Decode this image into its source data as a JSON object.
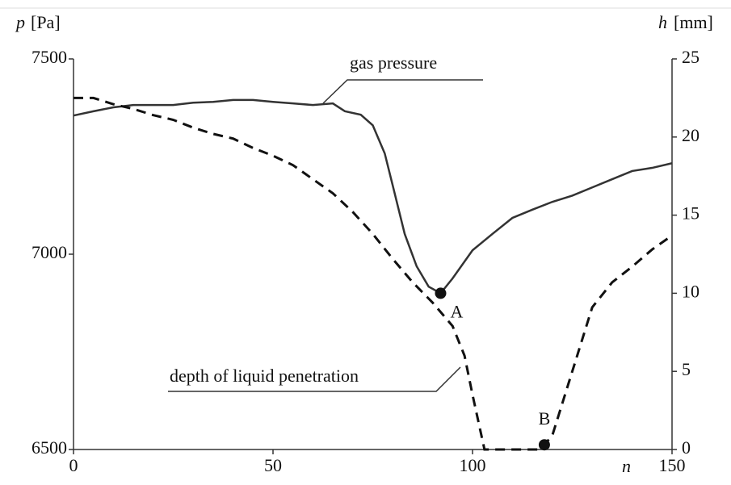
{
  "chart_data": {
    "type": "line",
    "ylabel_symbol": "p",
    "ylabel_unit": "[Pa]",
    "y2label_symbol": "h",
    "y2label_unit": "[mm]",
    "xlabel": "n",
    "xlim": [
      0,
      150
    ],
    "xticks": [
      0,
      50,
      100,
      150
    ],
    "ylim": [
      6500,
      7500
    ],
    "yticks": [
      6500,
      7000,
      7500
    ],
    "y2lim": [
      0,
      25
    ],
    "y2ticks": [
      0,
      5,
      10,
      15,
      20,
      25
    ],
    "annotations": [
      "gas pressure",
      "depth of liquid penetration"
    ],
    "series": [
      {
        "name": "gas pressure",
        "color": "#333333",
        "dash": false,
        "axis": "y",
        "x": [
          0,
          5,
          10,
          15,
          20,
          25,
          30,
          35,
          40,
          45,
          50,
          55,
          60,
          65,
          68,
          72,
          75,
          78,
          80,
          83,
          86,
          89,
          92,
          95,
          100,
          105,
          110,
          115,
          120,
          125,
          130,
          135,
          140,
          145,
          150
        ],
        "values": [
          7355,
          7366,
          7376,
          7382,
          7382,
          7382,
          7388,
          7390,
          7395,
          7395,
          7390,
          7386,
          7382,
          7386,
          7366,
          7357,
          7330,
          7258,
          7176,
          7052,
          6969,
          6917,
          6900,
          6938,
          7010,
          7052,
          7093,
          7114,
          7134,
          7150,
          7171,
          7192,
          7213,
          7221,
          7233
        ]
      },
      {
        "name": "depth of liquid penetration",
        "color": "#111111",
        "dash": true,
        "axis": "y2",
        "x": [
          0,
          5,
          10,
          15,
          20,
          25,
          30,
          35,
          40,
          45,
          50,
          55,
          60,
          65,
          70,
          75,
          80,
          85,
          90,
          95,
          98,
          100,
          103,
          110,
          117,
          120,
          125,
          130,
          135,
          140,
          145,
          150
        ],
        "values": [
          22.5,
          22.5,
          22.1,
          21.8,
          21.4,
          21.1,
          20.6,
          20.2,
          19.9,
          19.3,
          18.8,
          18.2,
          17.3,
          16.4,
          15.2,
          13.8,
          12.2,
          10.7,
          9.4,
          7.9,
          6.0,
          3.5,
          0,
          0,
          0,
          0.9,
          5,
          9.1,
          10.7,
          11.7,
          12.8,
          13.7
        ]
      }
    ],
    "points": [
      {
        "label": "A",
        "x": 92,
        "y": 6900,
        "axis": "y"
      },
      {
        "label": "B",
        "x": 118,
        "y": 0.3,
        "axis": "y2"
      }
    ]
  }
}
